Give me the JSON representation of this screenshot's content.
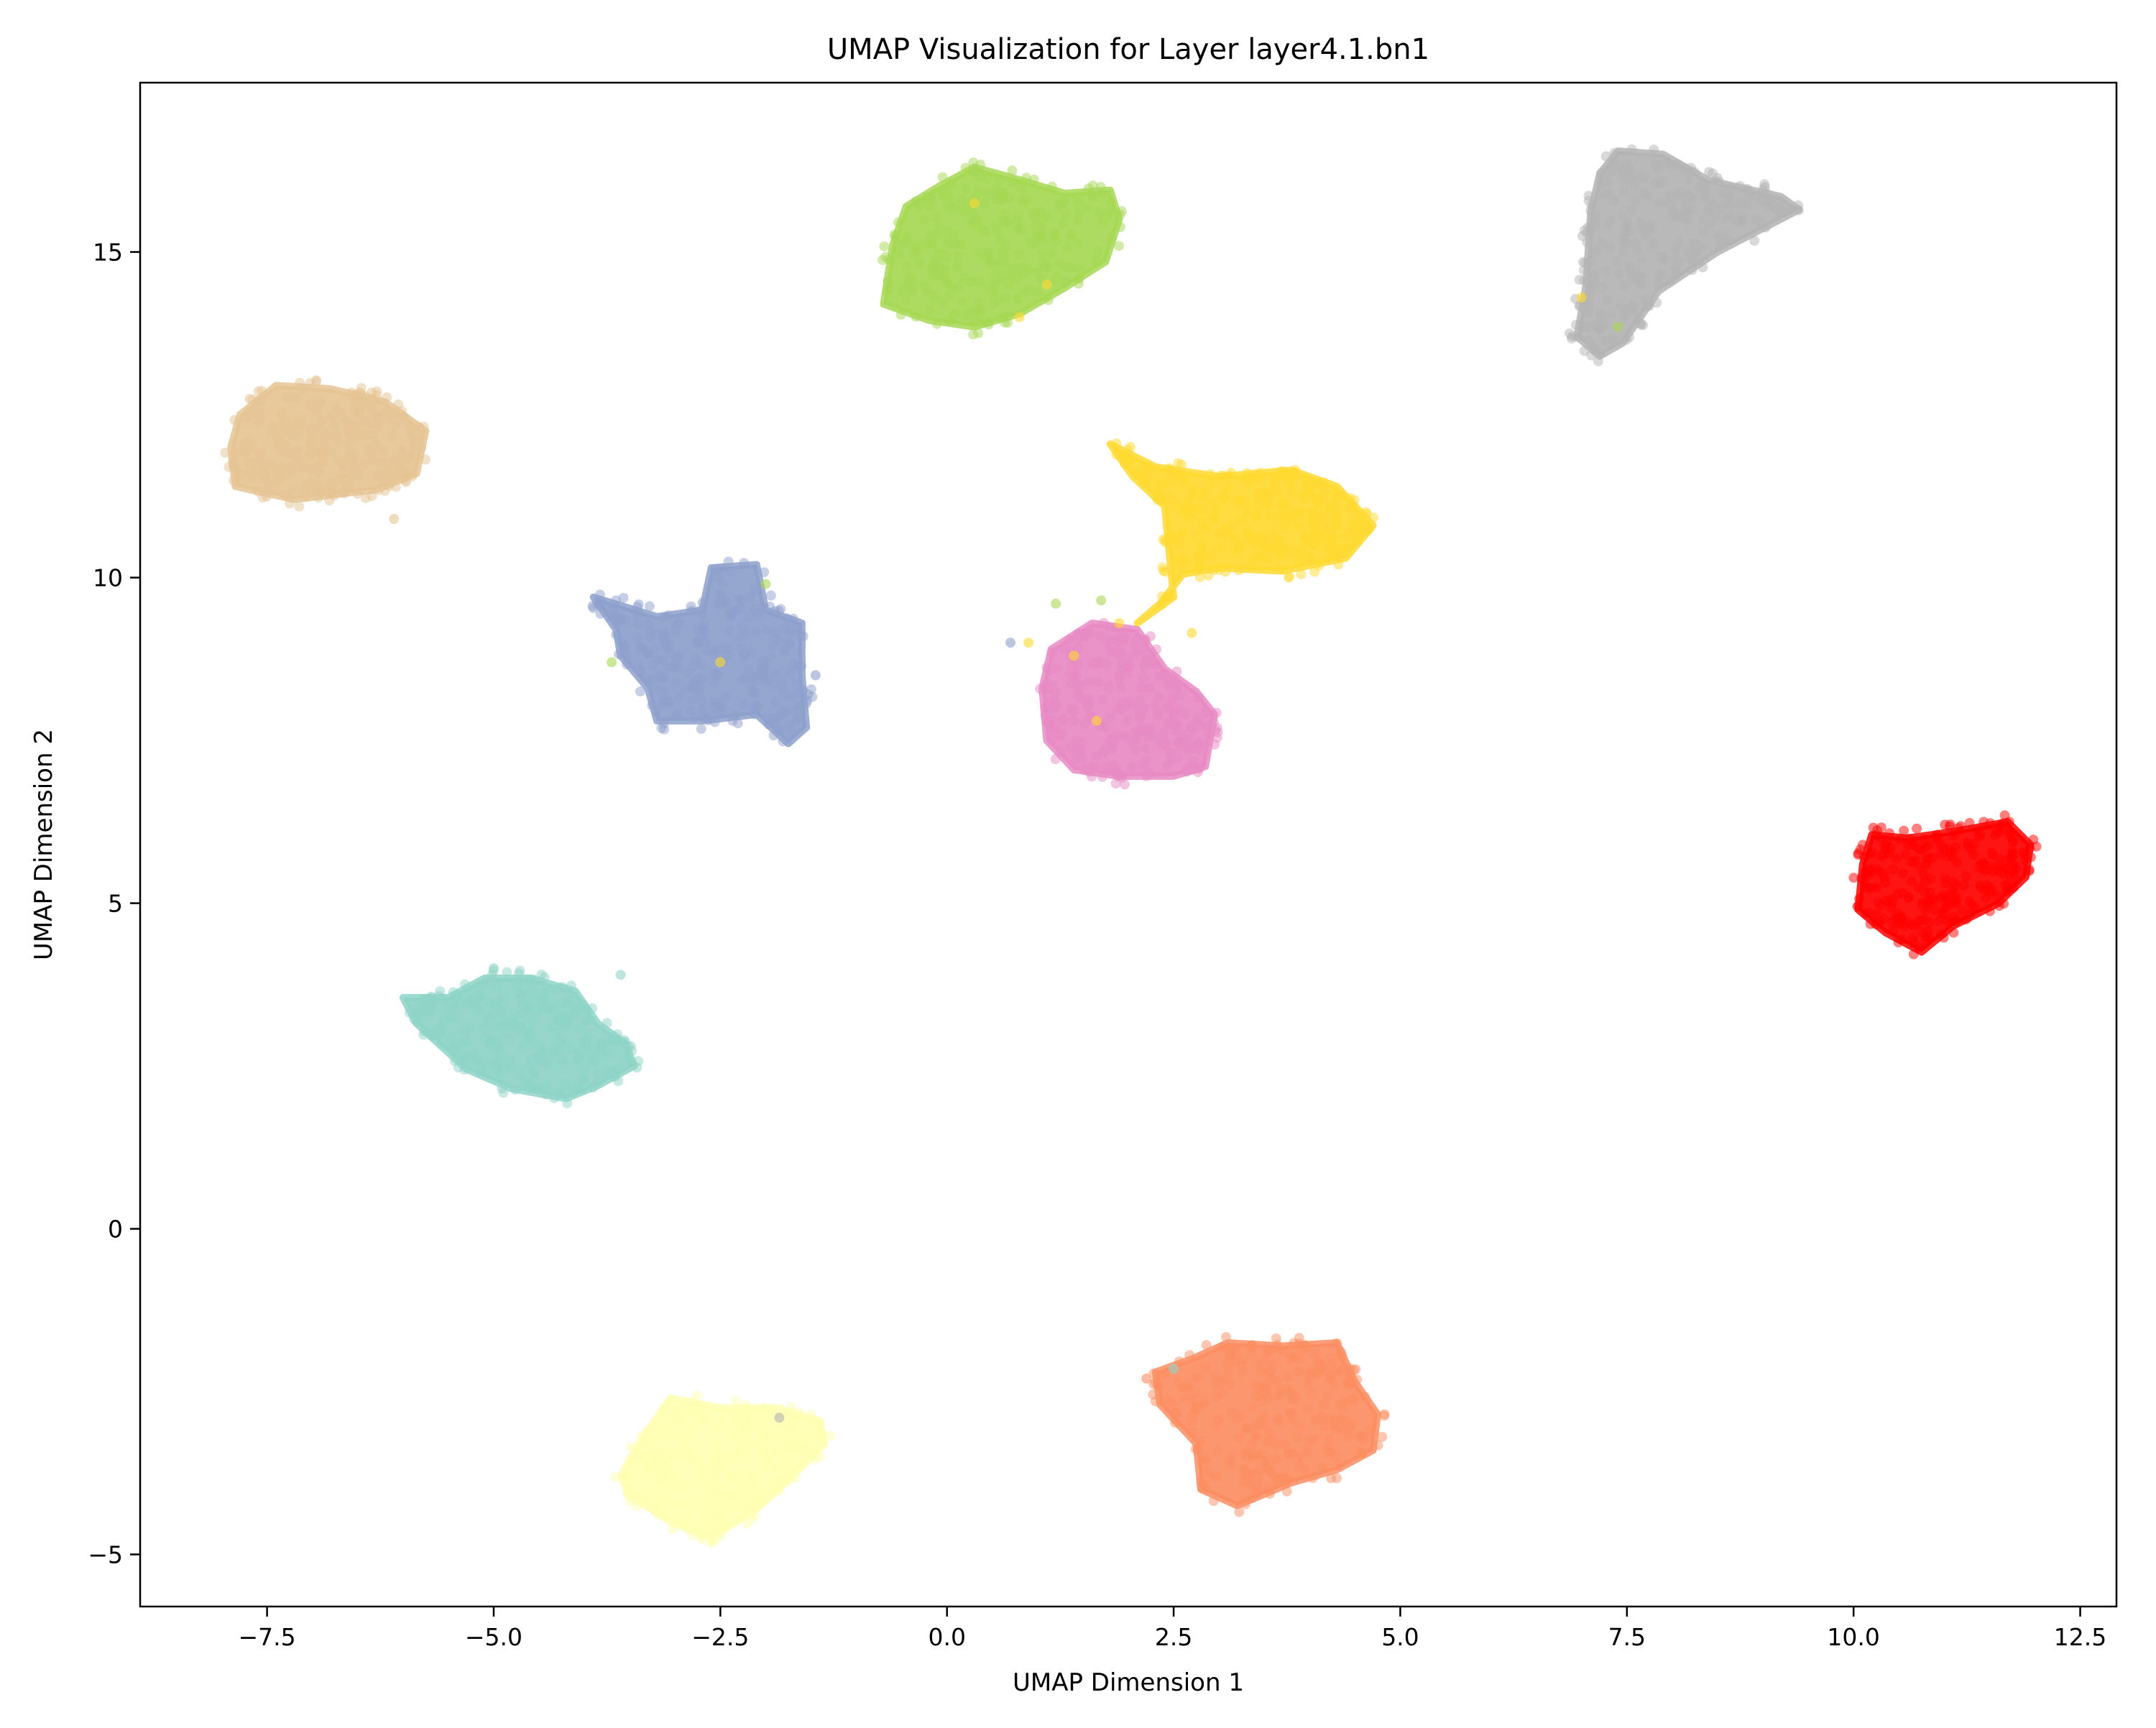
{
  "chart_data": {
    "type": "scatter",
    "title": "UMAP Visualization for Layer layer4.1.bn1",
    "xlabel": "UMAP Dimension 1",
    "ylabel": "UMAP Dimension 2",
    "xlim": [
      -8.9,
      12.9
    ],
    "ylim": [
      -5.8,
      17.6
    ],
    "grid": false,
    "legend": "none",
    "xticks": [
      -7.5,
      -5.0,
      -2.5,
      0.0,
      2.5,
      5.0,
      7.5,
      10.0,
      12.5
    ],
    "xtick_labels": [
      "−7.5",
      "−5.0",
      "−2.5",
      "0.0",
      "2.5",
      "5.0",
      "7.5",
      "10.0",
      "12.5"
    ],
    "yticks": [
      -5,
      0,
      5,
      10,
      15
    ],
    "ytick_labels": [
      "−5",
      "0",
      "5",
      "10",
      "15"
    ],
    "point_alpha": 0.5,
    "series": [
      {
        "color": "#e5c494",
        "outline": [
          [
            -7.8,
            12.5
          ],
          [
            -7.4,
            12.95
          ],
          [
            -6.8,
            12.9
          ],
          [
            -6.2,
            12.7
          ],
          [
            -5.75,
            12.25
          ],
          [
            -5.85,
            11.6
          ],
          [
            -6.3,
            11.35
          ],
          [
            -7.2,
            11.2
          ],
          [
            -7.85,
            11.4
          ],
          [
            -7.9,
            12.0
          ]
        ]
      },
      {
        "color": "#a6d854",
        "outline": [
          [
            -0.7,
            14.2
          ],
          [
            -0.6,
            15.1
          ],
          [
            -0.45,
            15.7
          ],
          [
            -0.1,
            16.0
          ],
          [
            0.3,
            16.3
          ],
          [
            0.7,
            16.15
          ],
          [
            1.3,
            15.9
          ],
          [
            1.8,
            15.95
          ],
          [
            1.9,
            15.5
          ],
          [
            1.75,
            14.85
          ],
          [
            1.3,
            14.45
          ],
          [
            0.8,
            14.05
          ],
          [
            0.3,
            13.85
          ],
          [
            -0.2,
            13.95
          ]
        ]
      },
      {
        "color": "#b3b3b3",
        "outline": [
          [
            6.95,
            13.7
          ],
          [
            7.2,
            13.4
          ],
          [
            7.45,
            13.6
          ],
          [
            7.85,
            14.4
          ],
          [
            8.5,
            15.0
          ],
          [
            9.4,
            15.65
          ],
          [
            9.2,
            15.85
          ],
          [
            8.4,
            16.1
          ],
          [
            7.9,
            16.5
          ],
          [
            7.4,
            16.55
          ],
          [
            7.2,
            16.2
          ],
          [
            7.1,
            15.6
          ],
          [
            7.05,
            14.5
          ]
        ]
      },
      {
        "color": "#ffd92f",
        "outline": [
          [
            1.8,
            12.05
          ],
          [
            2.3,
            11.7
          ],
          [
            3.0,
            11.55
          ],
          [
            3.8,
            11.65
          ],
          [
            4.3,
            11.4
          ],
          [
            4.7,
            10.8
          ],
          [
            4.4,
            10.3
          ],
          [
            3.7,
            10.1
          ],
          [
            3.0,
            10.15
          ],
          [
            2.6,
            10.05
          ],
          [
            2.35,
            9.6
          ],
          [
            2.1,
            9.3
          ],
          [
            2.5,
            9.7
          ],
          [
            2.45,
            10.4
          ],
          [
            2.4,
            11.1
          ],
          [
            2.05,
            11.55
          ]
        ]
      },
      {
        "color": "#8da0cb",
        "outline": [
          [
            -3.9,
            9.7
          ],
          [
            -3.2,
            9.4
          ],
          [
            -2.7,
            9.5
          ],
          [
            -2.6,
            10.15
          ],
          [
            -2.1,
            10.2
          ],
          [
            -2.0,
            9.5
          ],
          [
            -1.6,
            9.3
          ],
          [
            -1.6,
            8.5
          ],
          [
            -1.55,
            7.7
          ],
          [
            -1.75,
            7.45
          ],
          [
            -2.1,
            7.9
          ],
          [
            -2.7,
            7.8
          ],
          [
            -3.2,
            7.8
          ],
          [
            -3.3,
            8.3
          ],
          [
            -3.6,
            8.8
          ],
          [
            -3.65,
            9.2
          ]
        ]
      },
      {
        "color": "#e78ac3",
        "outline": [
          [
            1.05,
            8.3
          ],
          [
            1.15,
            8.9
          ],
          [
            1.6,
            9.3
          ],
          [
            2.1,
            9.2
          ],
          [
            2.4,
            8.6
          ],
          [
            2.75,
            8.25
          ],
          [
            2.95,
            7.9
          ],
          [
            2.85,
            7.1
          ],
          [
            2.5,
            6.95
          ],
          [
            1.9,
            6.95
          ],
          [
            1.4,
            7.05
          ],
          [
            1.1,
            7.5
          ]
        ]
      },
      {
        "color": "#ff0000",
        "outline": [
          [
            10.2,
            6.05
          ],
          [
            10.6,
            6.0
          ],
          [
            11.1,
            6.1
          ],
          [
            11.7,
            6.25
          ],
          [
            11.95,
            5.9
          ],
          [
            11.9,
            5.4
          ],
          [
            11.6,
            5.0
          ],
          [
            11.1,
            4.65
          ],
          [
            10.75,
            4.25
          ],
          [
            10.35,
            4.55
          ],
          [
            10.05,
            4.9
          ],
          [
            10.1,
            5.6
          ]
        ]
      },
      {
        "color": "#8dd3c7",
        "outline": [
          [
            -6.0,
            3.55
          ],
          [
            -5.5,
            3.55
          ],
          [
            -5.1,
            3.85
          ],
          [
            -4.6,
            3.85
          ],
          [
            -4.1,
            3.65
          ],
          [
            -3.85,
            3.15
          ],
          [
            -3.55,
            2.85
          ],
          [
            -3.45,
            2.5
          ],
          [
            -3.85,
            2.2
          ],
          [
            -4.2,
            2.0
          ],
          [
            -4.8,
            2.15
          ],
          [
            -5.3,
            2.45
          ],
          [
            -5.85,
            3.15
          ]
        ]
      },
      {
        "color": "#ffffb3",
        "outline": [
          [
            -3.6,
            -3.8
          ],
          [
            -3.4,
            -3.3
          ],
          [
            -3.05,
            -2.6
          ],
          [
            -2.5,
            -2.75
          ],
          [
            -1.9,
            -2.75
          ],
          [
            -1.4,
            -2.95
          ],
          [
            -1.35,
            -3.3
          ],
          [
            -1.7,
            -3.8
          ],
          [
            -2.1,
            -4.3
          ],
          [
            -2.6,
            -4.75
          ],
          [
            -3.05,
            -4.5
          ],
          [
            -3.5,
            -4.1
          ]
        ]
      },
      {
        "color": "#fc8d62",
        "outline": [
          [
            2.3,
            -2.2
          ],
          [
            2.7,
            -2.0
          ],
          [
            3.1,
            -1.75
          ],
          [
            3.7,
            -1.8
          ],
          [
            4.3,
            -1.75
          ],
          [
            4.5,
            -2.35
          ],
          [
            4.75,
            -2.85
          ],
          [
            4.7,
            -3.4
          ],
          [
            4.3,
            -3.7
          ],
          [
            3.8,
            -3.9
          ],
          [
            3.2,
            -4.25
          ],
          [
            2.8,
            -4.0
          ],
          [
            2.75,
            -3.3
          ],
          [
            2.35,
            -2.7
          ]
        ]
      }
    ],
    "stray_points": [
      {
        "x": -6.1,
        "y": 10.9,
        "color": "#e5c494"
      },
      {
        "x": -5.0,
        "y": 4.0,
        "color": "#8dd3c7"
      },
      {
        "x": -3.6,
        "y": 3.9,
        "color": "#8dd3c7"
      },
      {
        "x": -3.7,
        "y": 8.7,
        "color": "#a6d854"
      },
      {
        "x": -2.0,
        "y": 9.9,
        "color": "#a6d854"
      },
      {
        "x": -2.5,
        "y": 8.7,
        "color": "#ffd92f"
      },
      {
        "x": -1.45,
        "y": 8.5,
        "color": "#8da0cb"
      },
      {
        "x": 0.3,
        "y": 15.75,
        "color": "#ffd92f"
      },
      {
        "x": 0.8,
        "y": 14.0,
        "color": "#ffd92f"
      },
      {
        "x": 1.1,
        "y": 14.5,
        "color": "#ffd92f"
      },
      {
        "x": 0.7,
        "y": 9.0,
        "color": "#8da0cb"
      },
      {
        "x": 1.2,
        "y": 9.6,
        "color": "#a6d854"
      },
      {
        "x": 1.7,
        "y": 9.65,
        "color": "#a6d854"
      },
      {
        "x": 0.9,
        "y": 9.0,
        "color": "#ffd92f"
      },
      {
        "x": 1.4,
        "y": 8.8,
        "color": "#ffd92f"
      },
      {
        "x": 2.7,
        "y": 9.15,
        "color": "#ffd92f"
      },
      {
        "x": 1.9,
        "y": 9.3,
        "color": "#ffd92f"
      },
      {
        "x": 1.65,
        "y": 7.8,
        "color": "#ffd92f"
      },
      {
        "x": 7.0,
        "y": 14.3,
        "color": "#ffd92f"
      },
      {
        "x": 7.4,
        "y": 13.85,
        "color": "#a6d854"
      },
      {
        "x": 2.2,
        "y": -2.3,
        "color": "#fc8d62"
      },
      {
        "x": 2.5,
        "y": -2.15,
        "color": "#8dd3c7"
      },
      {
        "x": -1.85,
        "y": -2.9,
        "color": "#b3b3b3"
      }
    ]
  }
}
